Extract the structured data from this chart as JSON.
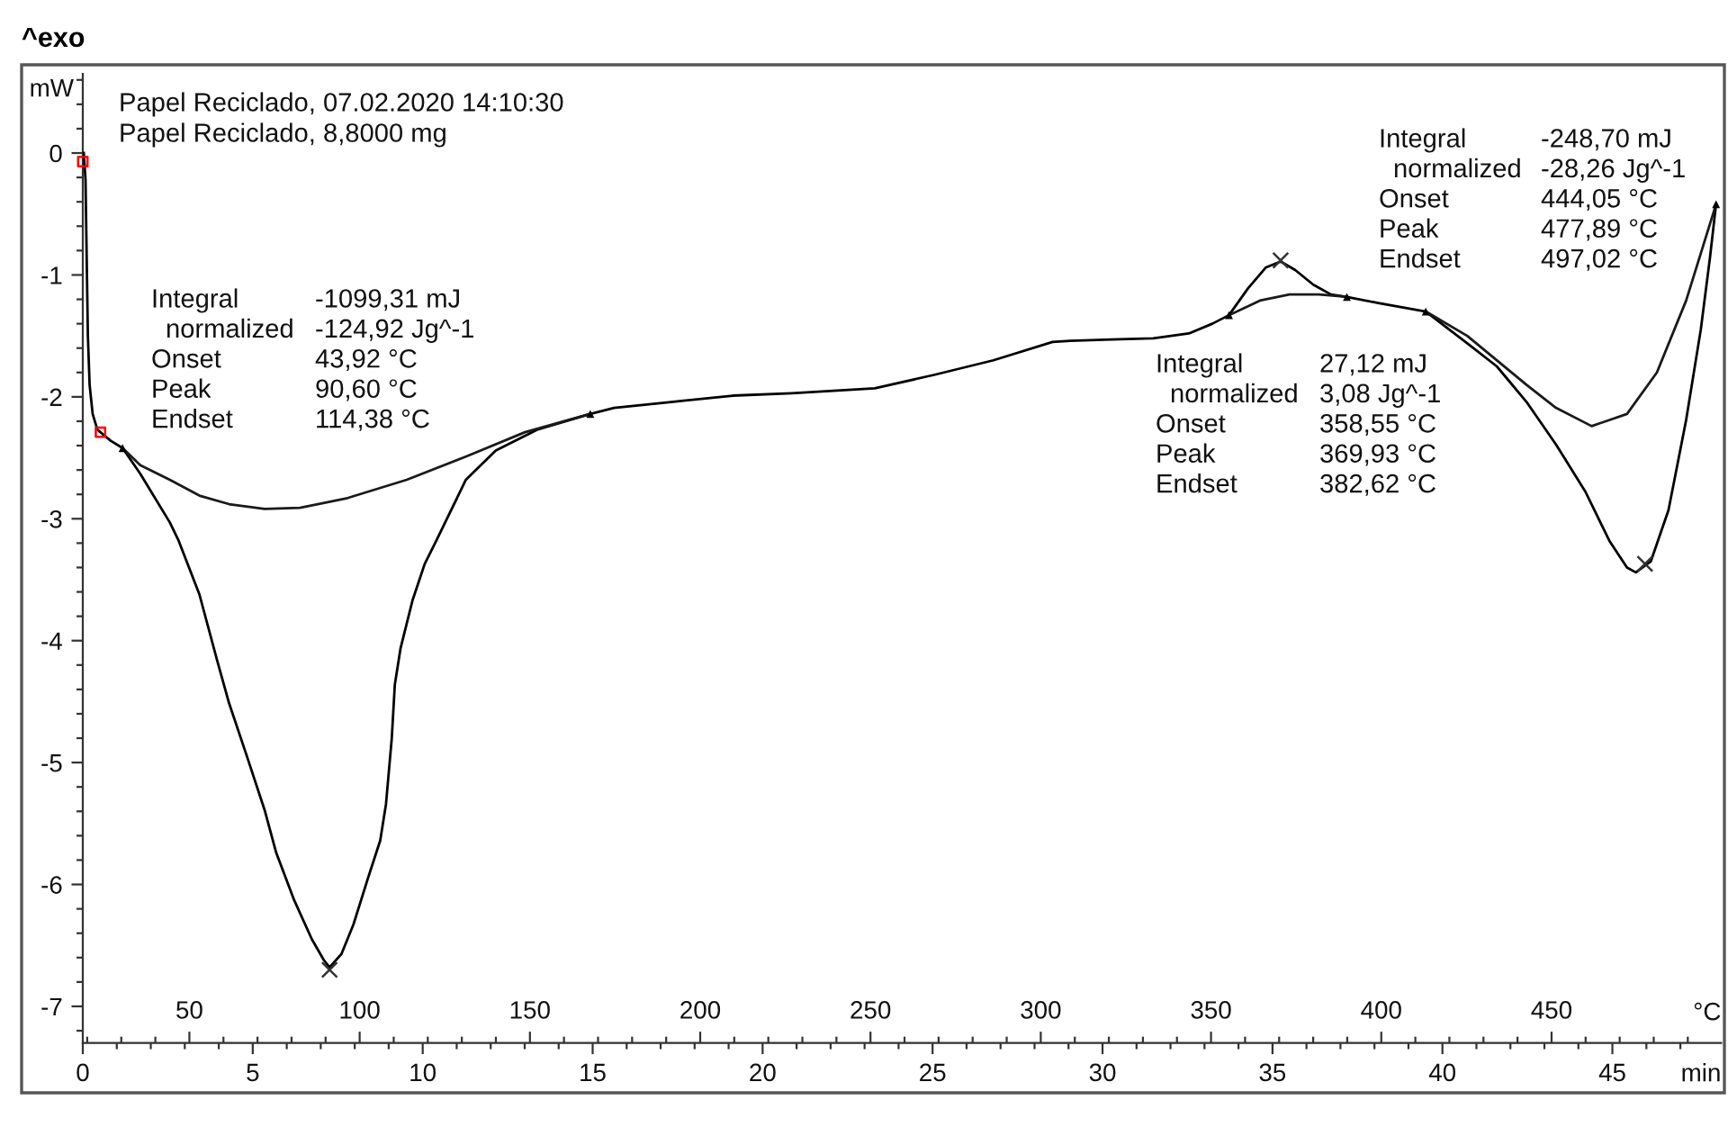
{
  "chart_data": {
    "type": "line",
    "title": "^exo",
    "xlabel": "min",
    "x2label": "°C",
    "ylabel": "mW",
    "line_style": "solid",
    "xlim": [
      0,
      48.2
    ],
    "ylim": [
      -7.3,
      0.65
    ],
    "x2lim": [
      18.7,
      499.8
    ],
    "xticks": [
      0,
      {
        "value": 1,
        "label": null
      },
      {
        "value": 2,
        "label": null
      },
      {
        "value": 3,
        "label": null
      },
      {
        "value": 4,
        "label": null
      },
      5,
      {
        "value": 6,
        "label": null
      },
      {
        "value": 7,
        "label": null
      },
      {
        "value": 8,
        "label": null
      },
      {
        "value": 9,
        "label": null
      },
      10,
      {
        "value": 11,
        "label": null
      },
      {
        "value": 12,
        "label": null
      },
      {
        "value": 13,
        "label": null
      },
      {
        "value": 14,
        "label": null
      },
      15,
      {
        "value": 16,
        "label": null
      },
      {
        "value": 17,
        "label": null
      },
      {
        "value": 18,
        "label": null
      },
      {
        "value": 19,
        "label": null
      },
      20,
      {
        "value": 21,
        "label": null
      },
      {
        "value": 22,
        "label": null
      },
      {
        "value": 23,
        "label": null
      },
      {
        "value": 24,
        "label": null
      },
      25,
      {
        "value": 26,
        "label": null
      },
      {
        "value": 27,
        "label": null
      },
      {
        "value": 28,
        "label": null
      },
      {
        "value": 29,
        "label": null
      },
      30,
      {
        "value": 31,
        "label": null
      },
      {
        "value": 32,
        "label": null
      },
      {
        "value": 33,
        "label": null
      },
      {
        "value": 34,
        "label": null
      },
      35,
      {
        "value": 36,
        "label": null
      },
      {
        "value": 37,
        "label": null
      },
      {
        "value": 38,
        "label": null
      },
      {
        "value": 39,
        "label": null
      },
      40,
      {
        "value": 41,
        "label": null
      },
      {
        "value": 42,
        "label": null
      },
      {
        "value": 43,
        "label": null
      },
      {
        "value": 44,
        "label": null
      },
      45,
      {
        "value": 46,
        "label": null
      },
      {
        "value": 47,
        "label": null
      }
    ],
    "x2ticks": [
      {
        "value": 20,
        "label": null
      },
      {
        "value": 30,
        "label": null
      },
      {
        "value": 40,
        "label": null
      },
      50,
      {
        "value": 60,
        "label": null
      },
      {
        "value": 70,
        "label": null
      },
      {
        "value": 80,
        "label": null
      },
      {
        "value": 90,
        "label": null
      },
      100,
      {
        "value": 110,
        "label": null
      },
      {
        "value": 120,
        "label": null
      },
      {
        "value": 130,
        "label": null
      },
      {
        "value": 140,
        "label": null
      },
      150,
      {
        "value": 160,
        "label": null
      },
      {
        "value": 170,
        "label": null
      },
      {
        "value": 180,
        "label": null
      },
      {
        "value": 190,
        "label": null
      },
      200,
      {
        "value": 210,
        "label": null
      },
      {
        "value": 220,
        "label": null
      },
      {
        "value": 230,
        "label": null
      },
      {
        "value": 240,
        "label": null
      },
      250,
      {
        "value": 260,
        "label": null
      },
      {
        "value": 270,
        "label": null
      },
      {
        "value": 280,
        "label": null
      },
      {
        "value": 290,
        "label": null
      },
      300,
      {
        "value": 310,
        "label": null
      },
      {
        "value": 320,
        "label": null
      },
      {
        "value": 330,
        "label": null
      },
      {
        "value": 340,
        "label": null
      },
      350,
      {
        "value": 360,
        "label": null
      },
      {
        "value": 370,
        "label": null
      },
      {
        "value": 380,
        "label": null
      },
      {
        "value": 390,
        "label": null
      },
      400,
      {
        "value": 410,
        "label": null
      },
      {
        "value": 420,
        "label": null
      },
      {
        "value": 430,
        "label": null
      },
      {
        "value": 440,
        "label": null
      },
      450,
      {
        "value": 460,
        "label": null
      },
      {
        "value": 470,
        "label": null
      },
      {
        "value": 480,
        "label": null
      },
      {
        "value": 490,
        "label": null
      }
    ],
    "yticks": [
      {
        "value": 0.6,
        "label": null
      },
      {
        "value": 0.4,
        "label": null
      },
      {
        "value": 0.2,
        "label": null
      },
      0,
      {
        "value": -0.2,
        "label": null
      },
      {
        "value": -0.4,
        "label": null
      },
      {
        "value": -0.6,
        "label": null
      },
      {
        "value": -0.8,
        "label": null
      },
      -1,
      {
        "value": -1.2,
        "label": null
      },
      {
        "value": -1.4,
        "label": null
      },
      {
        "value": -1.6,
        "label": null
      },
      {
        "value": -1.8,
        "label": null
      },
      -2,
      {
        "value": -2.2,
        "label": null
      },
      {
        "value": -2.4,
        "label": null
      },
      {
        "value": -2.6,
        "label": null
      },
      {
        "value": -2.8,
        "label": null
      },
      -3,
      {
        "value": -3.2,
        "label": null
      },
      {
        "value": -3.4,
        "label": null
      },
      {
        "value": -3.6,
        "label": null
      },
      {
        "value": -3.8,
        "label": null
      },
      -4,
      {
        "value": -4.2,
        "label": null
      },
      {
        "value": -4.4,
        "label": null
      },
      {
        "value": -4.6,
        "label": null
      },
      {
        "value": -4.8,
        "label": null
      },
      -5,
      {
        "value": -5.2,
        "label": null
      },
      {
        "value": -5.4,
        "label": null
      },
      {
        "value": -5.6,
        "label": null
      },
      {
        "value": -5.8,
        "label": null
      },
      -6,
      {
        "value": -6.2,
        "label": null
      },
      {
        "value": -6.4,
        "label": null
      },
      {
        "value": -6.6,
        "label": null
      },
      {
        "value": -6.8,
        "label": null
      },
      -7,
      {
        "value": -7.2,
        "label": null
      }
    ],
    "series": [
      {
        "color": "#000000",
        "x": [
          0.03,
          0.08,
          0.12,
          0.15,
          0.2,
          0.29,
          0.43,
          0.82,
          1.17,
          1.69,
          2.56,
          2.82,
          3.43,
          3.95,
          4.3,
          4.83,
          5.35,
          5.69,
          6.22,
          6.74,
          7.09,
          7.26,
          7.61,
          7.96,
          8.4,
          8.75,
          8.92,
          9.09,
          9.18,
          9.35,
          9.7,
          10.06,
          10.4,
          11.27,
          12.15,
          13.36,
          14.93,
          15.63,
          17.37,
          19.12,
          20.86,
          23.3,
          25.04,
          26.79,
          28.53,
          29.05,
          30.27,
          31.49,
          32.54,
          33.23,
          33.72,
          34.28,
          34.8,
          35.24,
          35.67,
          36.2,
          36.72,
          37.19,
          38.11,
          39.51,
          40.73,
          41.6,
          42.47,
          43.34,
          44.21,
          44.91,
          45.43,
          45.69,
          46.13,
          46.65,
          47.17,
          47.6,
          47.87,
          48.05
        ],
        "values": [
          0.0,
          -0.22,
          -0.96,
          -1.5,
          -1.9,
          -2.14,
          -2.27,
          -2.36,
          -2.42,
          -2.63,
          -3.03,
          -3.18,
          -3.62,
          -4.16,
          -4.51,
          -4.95,
          -5.39,
          -5.74,
          -6.13,
          -6.45,
          -6.62,
          -6.68,
          -6.57,
          -6.33,
          -5.94,
          -5.64,
          -5.34,
          -4.8,
          -4.36,
          -4.06,
          -3.67,
          -3.37,
          -3.18,
          -2.68,
          -2.44,
          -2.27,
          -2.14,
          -2.09,
          -2.04,
          -1.99,
          -1.97,
          -1.93,
          -1.82,
          -1.7,
          -1.55,
          -1.54,
          -1.53,
          -1.52,
          -1.48,
          -1.4,
          -1.33,
          -1.11,
          -0.94,
          -0.89,
          -0.96,
          -1.08,
          -1.16,
          -1.18,
          -1.23,
          -1.3,
          -1.56,
          -1.75,
          -2.04,
          -2.39,
          -2.78,
          -3.18,
          -3.4,
          -3.44,
          -3.35,
          -2.93,
          -2.19,
          -1.45,
          -0.86,
          -0.42
        ]
      },
      {
        "color": "#1a1a1a",
        "x": [
          1.17,
          1.69,
          2.56,
          3.43,
          4.3,
          5.35,
          6.39,
          7.79,
          9.53,
          11.27,
          13.01,
          14.93
        ],
        "values": [
          -2.42,
          -2.56,
          -2.68,
          -2.81,
          -2.88,
          -2.92,
          -2.91,
          -2.83,
          -2.68,
          -2.49,
          -2.29,
          -2.14
        ]
      },
      {
        "color": "#1a1a1a",
        "x": [
          33.72,
          34.63,
          35.5,
          36.37,
          37.19
        ],
        "values": [
          -1.33,
          -1.21,
          -1.16,
          -1.16,
          -1.18
        ]
      },
      {
        "color": "#1a1a1a",
        "x": [
          39.51,
          40.73,
          42.47,
          43.34,
          44.39,
          45.43,
          46.31,
          47.17,
          48.05
        ],
        "values": [
          -1.3,
          -1.5,
          -1.9,
          -2.09,
          -2.24,
          -2.14,
          -1.8,
          -1.21,
          -0.42
        ]
      },
      {
        "type": "scatter",
        "marker": "cross",
        "color": "#333333",
        "x": [
          7.26,
          35.24,
          45.96
        ],
        "values": [
          -6.7,
          -0.88,
          -3.37
        ]
      },
      {
        "type": "scatter",
        "marker": "triangle",
        "color": "#000000",
        "x": [
          1.17,
          14.93,
          33.72,
          37.19,
          39.51,
          48.05
        ],
        "values": [
          -2.42,
          -2.14,
          -1.33,
          -1.18,
          -1.3,
          -0.42
        ]
      },
      {
        "type": "scatter",
        "marker": "square",
        "color": "#ff0000",
        "x": [
          0.0,
          0.52
        ],
        "values": [
          -0.07,
          -2.29
        ]
      }
    ],
    "annotations": [
      "Papel Reciclado, 07.02.2020 14:10:30",
      "Papel Reciclado, 8,8000 mg",
      "Integral\t-1099,31 mJ\nnormalized\t-124,92 Jg^-1\nOnset\t43,92 °C\nPeak\t90,60 °C\nEndset\t114,38 °C",
      "Integral\t27,12 mJ\nnormalized\t3,08 Jg^-1\nOnset\t358,55 °C\nPeak\t369,93 °C\nEndset\t382,62 °C",
      "Integral\t-248,70 mJ\nnormalized\t-28,26 Jg^-1\nOnset\t444,05 °C\nPeak\t477,89 °C\nEndset\t497,02 °C"
    ]
  }
}
